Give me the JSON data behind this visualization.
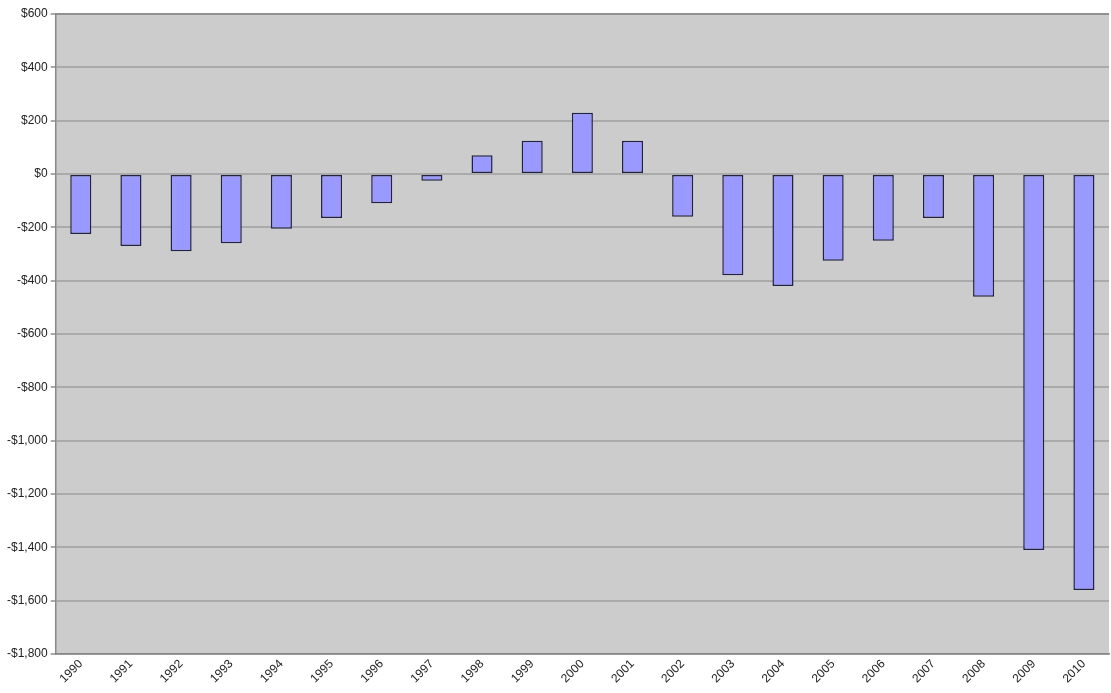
{
  "chart_data": {
    "type": "bar",
    "categories": [
      "1990",
      "1991",
      "1992",
      "1993",
      "1994",
      "1995",
      "1996",
      "1997",
      "1998",
      "1999",
      "2000",
      "2001",
      "2002",
      "2003",
      "2004",
      "2005",
      "2006",
      "2007",
      "2008",
      "2009",
      "2010"
    ],
    "values": [
      -225,
      -270,
      -290,
      -260,
      -205,
      -165,
      -110,
      -25,
      70,
      125,
      230,
      125,
      -160,
      -380,
      -420,
      -325,
      -250,
      -165,
      -460,
      -1410,
      -1560
    ],
    "color": "#9999ff",
    "ylim": [
      -1800,
      600
    ],
    "yticks": [
      {
        "value": -1800,
        "label": "-$1,800"
      },
      {
        "value": -1600,
        "label": "-$1,600"
      },
      {
        "value": -1400,
        "label": "-$1,400"
      },
      {
        "value": -1200,
        "label": "-$1,200"
      },
      {
        "value": -1000,
        "label": "-$1,000"
      },
      {
        "value": -800,
        "label": "-$800"
      },
      {
        "value": -600,
        "label": "-$600"
      },
      {
        "value": -400,
        "label": "-$400"
      },
      {
        "value": -200,
        "label": "-$200"
      },
      {
        "value": 0,
        "label": "$0"
      },
      {
        "value": 200,
        "label": "$200"
      },
      {
        "value": 400,
        "label": "$400"
      },
      {
        "value": 600,
        "label": "$600"
      }
    ],
    "grid": "y"
  }
}
